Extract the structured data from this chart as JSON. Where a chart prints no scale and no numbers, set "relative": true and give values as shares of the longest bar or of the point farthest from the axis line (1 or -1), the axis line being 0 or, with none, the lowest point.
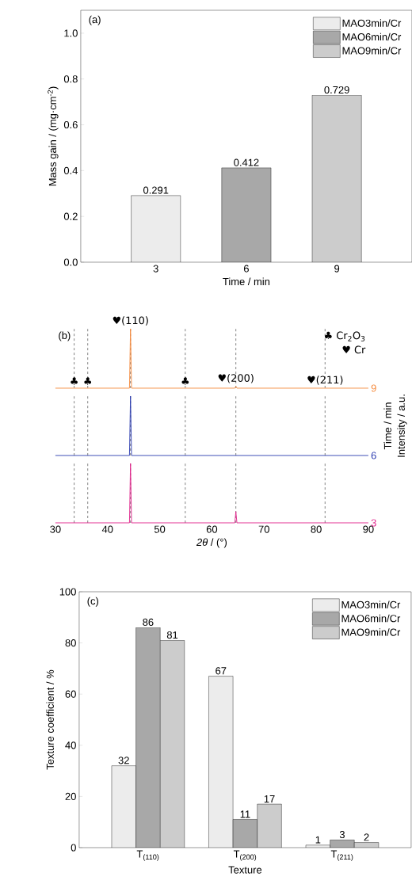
{
  "chart_data": [
    {
      "type": "bar",
      "categories": [
        "3",
        "6",
        "9"
      ],
      "series": [
        {
          "name": "MAO3min/Cr",
          "color": "#ececec",
          "values": [
            0.291,
            null,
            null
          ]
        },
        {
          "name": "MAO6min/Cr",
          "color": "#a8a8a8",
          "values": [
            null,
            0.412,
            null
          ]
        },
        {
          "name": "MAO9min/Cr",
          "color": "#cccccc",
          "values": [
            null,
            null,
            0.729
          ]
        }
      ],
      "xlabel": "Time / min",
      "ylabel": "Mass gain / (mg·cm$^{-2}$)",
      "ylim": [
        0,
        1.1
      ],
      "yticks": [
        {
          "value": 0,
          "label": "0.0"
        },
        0.2,
        0.4,
        0.6,
        0.8,
        {
          "value": 1,
          "label": "1.0"
        }
      ],
      "data_labels": true,
      "legend": "top right",
      "annotations": [
        "(a)"
      ]
    },
    {
      "type": "line",
      "x": [
        30,
        44.2,
        44.4,
        44.6,
        64.4,
        64.6,
        64.8,
        90
      ],
      "series": [
        {
          "name": "9",
          "color": "#f58a3c",
          "values": [
            0,
            0,
            1,
            0,
            0,
            0.03,
            0,
            0
          ]
        }
      ],
      "relative": true,
      "xlim": [
        30,
        90
      ],
      "xticks": [
        30,
        40,
        50,
        60,
        70,
        80,
        90
      ],
      "tick_labels": false,
      "ref_lines": [
        {
          "axis": "x",
          "value": 33.6,
          "label": "♣",
          "line_style": "dashed"
        },
        {
          "axis": "x",
          "value": 36.2,
          "label": "♣",
          "line_style": "dashed"
        },
        {
          "axis": "x",
          "value": 44.4,
          "label": "♥(110)",
          "line_style": "dashed"
        },
        {
          "axis": "x",
          "value": 54.9,
          "label": "♣",
          "line_style": "dashed"
        },
        {
          "axis": "x",
          "value": 64.6,
          "label": "♥(200)",
          "line_style": "dashed"
        },
        {
          "axis": "x",
          "value": 81.7,
          "label": "♥(211)",
          "line_style": "dashed"
        }
      ],
      "annotations": [
        "(b)",
        "♣ Cr$_{2}$O$_{3}$",
        "♥ Cr"
      ]
    },
    {
      "type": "line",
      "x": [
        30,
        44.2,
        44.4,
        44.6,
        90
      ],
      "series": [
        {
          "name": "6",
          "color": "#2b3bb0",
          "values": [
            0,
            0,
            1,
            0,
            0
          ]
        }
      ],
      "relative": true,
      "xlim": [
        30,
        90
      ],
      "xticks": [
        30,
        40,
        50,
        60,
        70,
        80,
        90
      ],
      "tick_labels": false,
      "ylabel": "Intensity / a.u.",
      "ref_lines": [
        {
          "axis": "x",
          "value": 33.6,
          "line_style": "dashed"
        },
        {
          "axis": "x",
          "value": 36.2,
          "line_style": "dashed"
        },
        {
          "axis": "x",
          "value": 44.4,
          "line_style": "dashed"
        },
        {
          "axis": "x",
          "value": 54.9,
          "line_style": "dashed"
        },
        {
          "axis": "x",
          "value": 64.6,
          "line_style": "dashed"
        },
        {
          "axis": "x",
          "value": 81.7,
          "line_style": "dashed"
        }
      ],
      "annotations": [
        "Time / min"
      ]
    },
    {
      "type": "line",
      "x": [
        30,
        44.2,
        44.4,
        44.6,
        64.4,
        64.6,
        64.8,
        90
      ],
      "series": [
        {
          "name": "3",
          "color": "#e0218a",
          "values": [
            0,
            0,
            1,
            0,
            0,
            0.19,
            0,
            0
          ]
        }
      ],
      "relative": true,
      "xlim": [
        30,
        90
      ],
      "xticks": [
        30,
        40,
        50,
        60,
        70,
        80,
        90
      ],
      "tick_labels": "x",
      "xlabel": "*2θ* / (°)",
      "ref_lines": [
        {
          "axis": "x",
          "value": 33.6,
          "line_style": "dashed"
        },
        {
          "axis": "x",
          "value": 36.2,
          "line_style": "dashed"
        },
        {
          "axis": "x",
          "value": 44.4,
          "line_style": "dashed"
        },
        {
          "axis": "x",
          "value": 54.9,
          "line_style": "dashed"
        },
        {
          "axis": "x",
          "value": 64.6,
          "line_style": "dashed"
        },
        {
          "axis": "x",
          "value": 81.7,
          "line_style": "dashed"
        }
      ]
    },
    {
      "type": "bar",
      "categories": [
        "T$_{(110)}$",
        "T$_{(200)}$",
        "T$_{(211)}$"
      ],
      "series": [
        {
          "name": "MAO3min/Cr",
          "color": "#ececec",
          "values": [
            32,
            67,
            1
          ]
        },
        {
          "name": "MAO6min/Cr",
          "color": "#a8a8a8",
          "values": [
            86,
            11,
            3
          ]
        },
        {
          "name": "MAO9min/Cr",
          "color": "#cccccc",
          "values": [
            81,
            17,
            2
          ]
        }
      ],
      "xlabel": "Texture",
      "ylabel": "Texture coefficient / %",
      "ylim": [
        0,
        100
      ],
      "yticks": [
        0,
        20,
        40,
        60,
        80,
        100
      ],
      "data_labels": true,
      "legend": "top right",
      "annotations": [
        "(c)"
      ]
    }
  ]
}
